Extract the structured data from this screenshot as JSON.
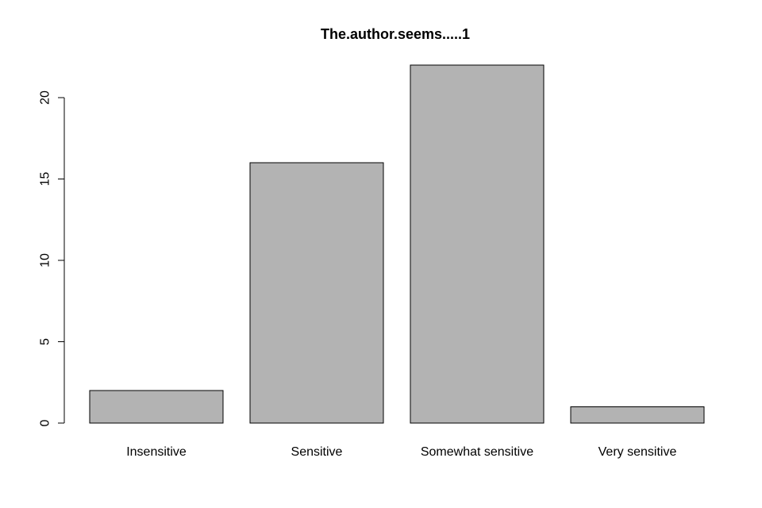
{
  "chart_data": {
    "type": "bar",
    "title": "The.author.seems.....1",
    "xlabel": "",
    "ylabel": "",
    "categories": [
      "Insensitive",
      "Sensitive",
      "Somewhat sensitive",
      "Very sensitive"
    ],
    "values": [
      2,
      16,
      22,
      1
    ],
    "ylim": [
      0,
      22
    ],
    "yticks": [
      0,
      5,
      10,
      15,
      20
    ],
    "grid": false,
    "legend": "none",
    "bar_color": "#b3b3b3",
    "border_color": "#000000"
  }
}
